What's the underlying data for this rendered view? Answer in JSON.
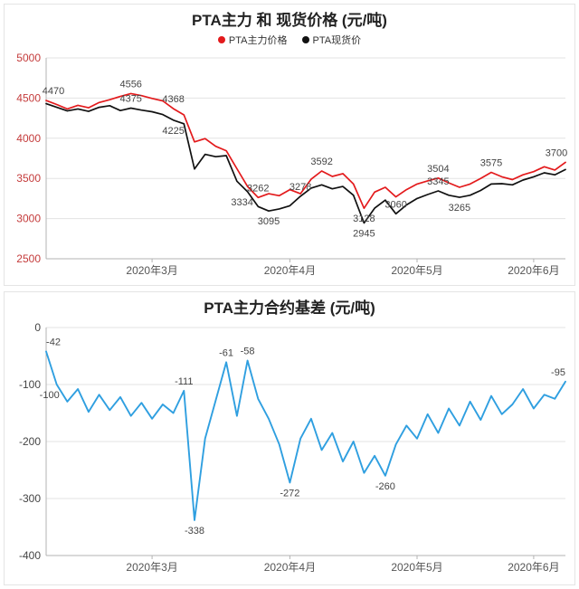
{
  "chart_data": [
    {
      "type": "line",
      "title": "PTA主力 和 现货价格 (元/吨)",
      "xlabel": "",
      "ylabel": "",
      "ylim": [
        2500,
        5000
      ],
      "yticks": [
        5000,
        4500,
        4000,
        3500,
        3000,
        2500
      ],
      "ytick_color": "#c43b3b",
      "grid": "horizontal",
      "legend_position": "top",
      "xticks": [
        {
          "index": 10,
          "label": "2020年3月"
        },
        {
          "index": 23,
          "label": "2020年4月"
        },
        {
          "index": 35,
          "label": "2020年5月"
        },
        {
          "index": 46,
          "label": "2020年6月"
        }
      ],
      "series": [
        {
          "name": "PTA主力价格",
          "color": "#e31a1c",
          "width": 1.7,
          "values": [
            4470,
            4420,
            4365,
            4410,
            4380,
            4445,
            4480,
            4520,
            4556,
            4530,
            4495,
            4465,
            4368,
            4290,
            3955,
            3995,
            3900,
            3845,
            3620,
            3400,
            3262,
            3310,
            3285,
            3360,
            3310,
            3490,
            3592,
            3525,
            3560,
            3430,
            3128,
            3330,
            3390,
            3270,
            3360,
            3430,
            3470,
            3504,
            3445,
            3390,
            3430,
            3500,
            3575,
            3520,
            3485,
            3545,
            3585,
            3645,
            3605,
            3700
          ],
          "annotations": [
            {
              "index": 0,
              "text": "4470",
              "pos": "above",
              "dx": 8
            },
            {
              "index": 8,
              "text": "4556",
              "pos": "above"
            },
            {
              "index": 12,
              "text": "4368",
              "pos": "above"
            },
            {
              "index": 20,
              "text": "3262",
              "pos": "above"
            },
            {
              "index": 26,
              "text": "3592",
              "pos": "above"
            },
            {
              "index": 30,
              "text": "3128",
              "pos": "below"
            },
            {
              "index": 37,
              "text": "3504",
              "pos": "above"
            },
            {
              "index": 42,
              "text": "3575",
              "pos": "above"
            },
            {
              "index": 49,
              "text": "3700",
              "pos": "above",
              "dx": -10
            }
          ]
        },
        {
          "name": "PTA现货价",
          "color": "#111111",
          "width": 1.7,
          "values": [
            4430,
            4385,
            4340,
            4365,
            4335,
            4385,
            4405,
            4345,
            4375,
            4350,
            4330,
            4295,
            4225,
            4180,
            3617,
            3800,
            3770,
            3784,
            3465,
            3334,
            3150,
            3095,
            3120,
            3160,
            3278,
            3380,
            3420,
            3370,
            3400,
            3290,
            2945,
            3130,
            3230,
            3060,
            3170,
            3250,
            3300,
            3345,
            3290,
            3265,
            3290,
            3350,
            3430,
            3435,
            3420,
            3480,
            3520,
            3570,
            3545,
            3610
          ],
          "annotations": [
            {
              "index": 8,
              "text": "4375",
              "pos": "above"
            },
            {
              "index": 12,
              "text": "4225",
              "pos": "below"
            },
            {
              "index": 19,
              "text": "3334",
              "pos": "below",
              "dx": -6
            },
            {
              "index": 21,
              "text": "3095",
              "pos": "below"
            },
            {
              "index": 24,
              "text": "3278",
              "pos": "above"
            },
            {
              "index": 30,
              "text": "2945",
              "pos": "below"
            },
            {
              "index": 33,
              "text": "3060",
              "pos": "above"
            },
            {
              "index": 37,
              "text": "3345",
              "pos": "above"
            },
            {
              "index": 39,
              "text": "3265",
              "pos": "below"
            }
          ]
        }
      ]
    },
    {
      "type": "line",
      "title": "PTA主力合约基差 (元/吨)",
      "xlabel": "",
      "ylabel": "",
      "ylim": [
        -400,
        0
      ],
      "yticks": [
        0,
        -100,
        -200,
        -300,
        -400
      ],
      "ytick_color": "#444444",
      "grid": "horizontal",
      "legend_position": "none",
      "xticks": [
        {
          "index": 10,
          "label": "2020年3月"
        },
        {
          "index": 23,
          "label": "2020年4月"
        },
        {
          "index": 35,
          "label": "2020年5月"
        },
        {
          "index": 46,
          "label": "2020年6月"
        }
      ],
      "series": [
        {
          "color": "#2f9fe0",
          "width": 1.9,
          "values": [
            -42,
            -100,
            -130,
            -108,
            -148,
            -118,
            -145,
            -122,
            -155,
            -132,
            -160,
            -135,
            -150,
            -111,
            -338,
            -195,
            -128,
            -61,
            -155,
            -58,
            -125,
            -160,
            -205,
            -272,
            -195,
            -160,
            -215,
            -185,
            -235,
            -200,
            -255,
            -225,
            -260,
            -205,
            -172,
            -195,
            -152,
            -185,
            -142,
            -172,
            -130,
            -162,
            -120,
            -152,
            -135,
            -108,
            -142,
            -118,
            -125,
            -95
          ],
          "annotations": [
            {
              "index": 0,
              "text": "-42",
              "pos": "above",
              "dx": 8
            },
            {
              "index": 1,
              "text": "-100",
              "pos": "below",
              "dx": -8
            },
            {
              "index": 13,
              "text": "-111",
              "pos": "above"
            },
            {
              "index": 14,
              "text": "-338",
              "pos": "below"
            },
            {
              "index": 17,
              "text": "-61",
              "pos": "above"
            },
            {
              "index": 19,
              "text": "-58",
              "pos": "above"
            },
            {
              "index": 23,
              "text": "-272",
              "pos": "below"
            },
            {
              "index": 32,
              "text": "-260",
              "pos": "below"
            },
            {
              "index": 49,
              "text": "-95",
              "pos": "above",
              "dx": -8
            }
          ]
        }
      ]
    }
  ]
}
